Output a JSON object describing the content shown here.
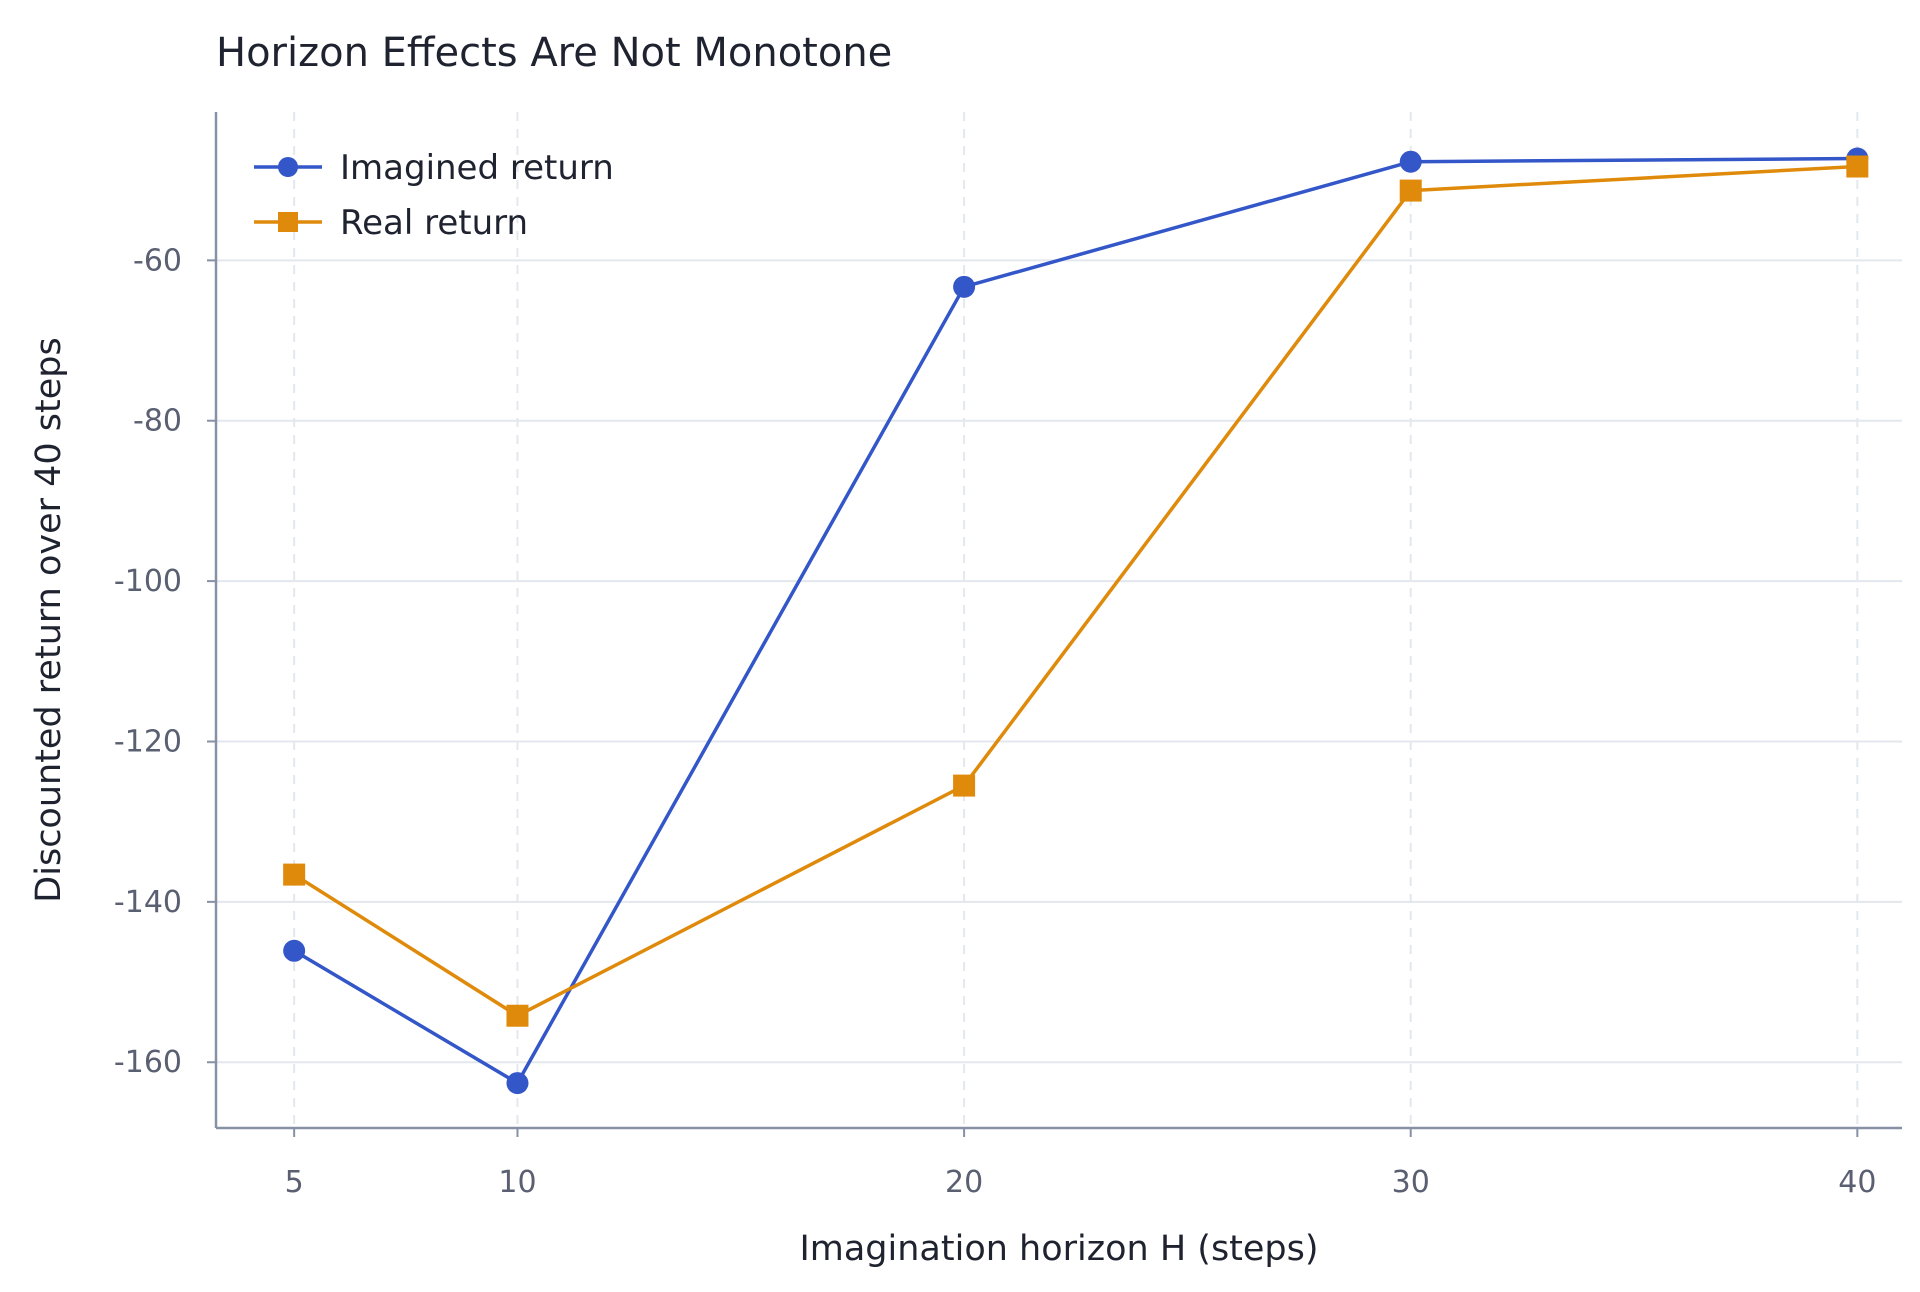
{
  "chart_data": {
    "type": "line",
    "title": "Horizon Effects Are Not Monotone",
    "xlabel": "Imagination horizon H (steps)",
    "ylabel": "Discounted return over 40 steps",
    "x": [
      5,
      10,
      20,
      30,
      40
    ],
    "xticks": [
      "5",
      "10",
      "20",
      "30",
      "40"
    ],
    "xlim": [
      3.25,
      41
    ],
    "yticks": [
      -60,
      -80,
      -100,
      -120,
      -140,
      -160
    ],
    "ytick_labels": [
      "-60",
      "-80",
      "-100",
      "-120",
      "-140",
      "-160"
    ],
    "ylim": [
      -168.2,
      -41.5
    ],
    "grid": true,
    "legend_position": "top-left",
    "series": [
      {
        "name": "Imagined return",
        "marker": "circle",
        "color": "#3356c8",
        "values": [
          -146.1,
          -162.6,
          -63.3,
          -47.7,
          -47.3
        ]
      },
      {
        "name": "Real return",
        "marker": "square",
        "color": "#e08a0b",
        "values": [
          -136.6,
          -154.2,
          -125.5,
          -51.3,
          -48.3
        ]
      }
    ]
  }
}
